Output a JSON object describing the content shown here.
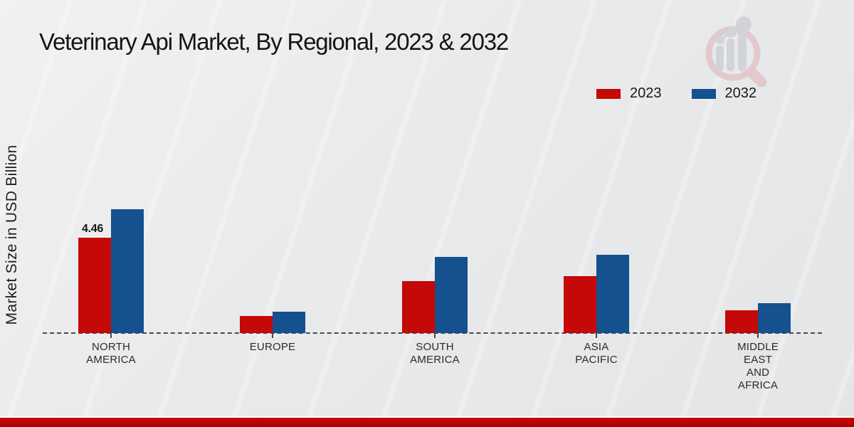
{
  "title": "Veterinary Api Market, By Regional, 2023 & 2032",
  "y_axis_label": "Market Size in USD Billion",
  "legend": [
    {
      "label": "2023",
      "color": "#c50808"
    },
    {
      "label": "2032",
      "color": "#15508f"
    }
  ],
  "chart_data": {
    "type": "bar",
    "title": "Veterinary Api Market, By Regional, 2023 & 2032",
    "xlabel": "",
    "ylabel": "Market Size in USD Billion",
    "categories": [
      "NORTH AMERICA",
      "EUROPE",
      "SOUTH AMERICA",
      "ASIA PACIFIC",
      "MIDDLE EAST AND AFRICA"
    ],
    "category_label_lines": [
      [
        "NORTH",
        "AMERICA"
      ],
      [
        "EUROPE"
      ],
      [
        "SOUTH",
        "AMERICA"
      ],
      [
        "ASIA",
        "PACIFIC"
      ],
      [
        "MIDDLE",
        "EAST",
        "AND",
        "AFRICA"
      ]
    ],
    "series": [
      {
        "name": "2023",
        "color": "#c50808",
        "values": [
          4.46,
          0.8,
          2.43,
          2.67,
          1.07
        ]
      },
      {
        "name": "2032",
        "color": "#15508f",
        "values": [
          5.79,
          1.0,
          3.56,
          3.66,
          1.4
        ]
      }
    ],
    "annotations": [
      {
        "series": "2023",
        "category": "NORTH AMERICA",
        "text": "4.46"
      }
    ],
    "ylim": [
      0,
      6.2
    ],
    "units": "USD Billion",
    "grid": false,
    "baseline_style": "dashed",
    "legend_position": "top-right"
  },
  "watermark": {
    "name": "magnifier-bar-chart-logo"
  }
}
